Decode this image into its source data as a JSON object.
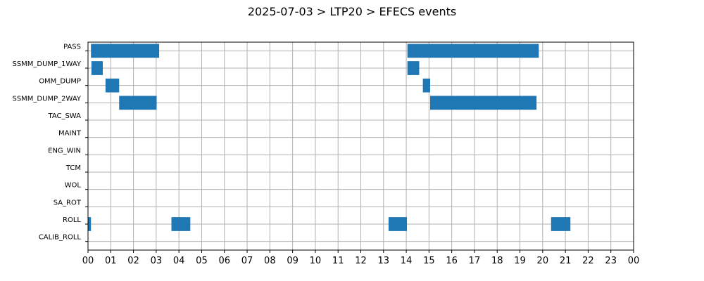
{
  "chart_data": {
    "type": "gantt",
    "title": "2025-07-03 > LTP20 > EFECS events",
    "xlabel": "",
    "ylabel": "",
    "xlim": [
      0,
      24
    ],
    "x_tick_labels": [
      "00",
      "01",
      "02",
      "03",
      "04",
      "05",
      "06",
      "07",
      "08",
      "09",
      "10",
      "11",
      "12",
      "13",
      "14",
      "15",
      "16",
      "17",
      "18",
      "19",
      "20",
      "21",
      "22",
      "23",
      "00"
    ],
    "grid": true,
    "bar_color": "#1f77b4",
    "categories": [
      "PASS",
      "SSMM_DUMP_1WAY",
      "OMM_DUMP",
      "SSMM_DUMP_2WAY",
      "TAC_SWA",
      "MAINT",
      "ENG_WIN",
      "TCM",
      "WOL",
      "SA_ROT",
      "ROLL",
      "CALIB_ROLL"
    ],
    "events": [
      {
        "category": "PASS",
        "start": 0.13,
        "end": 3.13
      },
      {
        "category": "PASS",
        "start": 14.05,
        "end": 19.83
      },
      {
        "category": "SSMM_DUMP_1WAY",
        "start": 0.15,
        "end": 0.65
      },
      {
        "category": "SSMM_DUMP_1WAY",
        "start": 14.05,
        "end": 14.57
      },
      {
        "category": "OMM_DUMP",
        "start": 0.77,
        "end": 1.37
      },
      {
        "category": "OMM_DUMP",
        "start": 14.73,
        "end": 15.05
      },
      {
        "category": "SSMM_DUMP_2WAY",
        "start": 1.37,
        "end": 3.02
      },
      {
        "category": "SSMM_DUMP_2WAY",
        "start": 15.05,
        "end": 19.73
      },
      {
        "category": "ROLL",
        "start": 0.0,
        "end": 0.13
      },
      {
        "category": "ROLL",
        "start": 3.67,
        "end": 4.5
      },
      {
        "category": "ROLL",
        "start": 13.22,
        "end": 14.03
      },
      {
        "category": "ROLL",
        "start": 20.37,
        "end": 21.22
      }
    ]
  }
}
